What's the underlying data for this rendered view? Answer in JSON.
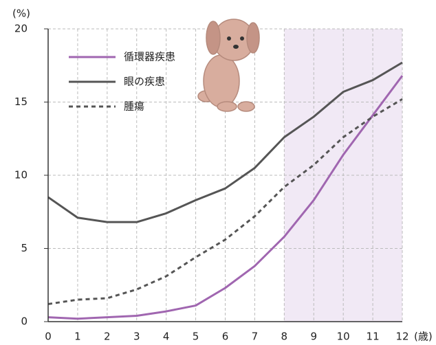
{
  "chart_data": {
    "type": "line",
    "y_unit": "(%)",
    "x_unit": "(歳)",
    "x": [
      0,
      1,
      2,
      3,
      4,
      5,
      6,
      7,
      8,
      9,
      10,
      11,
      12
    ],
    "xlim": [
      0,
      12
    ],
    "xticks": [
      0,
      1,
      2,
      3,
      4,
      5,
      6,
      7,
      8,
      9,
      10,
      11,
      12
    ],
    "ylim": [
      0,
      20
    ],
    "yticks": [
      0,
      5,
      10,
      15,
      20
    ],
    "grid": true,
    "legend": "upper left",
    "shaded_xrange": [
      8,
      12
    ],
    "shade_color": "#f1e9f5",
    "series": [
      {
        "name": "循環器疾患",
        "color": "#a066b0",
        "dash": false,
        "values": [
          0.3,
          0.2,
          0.3,
          0.4,
          0.7,
          1.1,
          2.3,
          3.8,
          5.8,
          8.3,
          11.4,
          14.1,
          16.8
        ]
      },
      {
        "name": "眼の疾患",
        "color": "#555555",
        "dash": false,
        "values": [
          8.5,
          7.1,
          6.8,
          6.8,
          7.4,
          8.3,
          9.1,
          10.5,
          12.6,
          14.0,
          15.7,
          16.5,
          17.7
        ]
      },
      {
        "name": "腫瘍",
        "color": "#555555",
        "dash": true,
        "values": [
          1.2,
          1.5,
          1.6,
          2.2,
          3.1,
          4.4,
          5.6,
          7.2,
          9.2,
          10.7,
          12.6,
          14.0,
          15.2
        ]
      }
    ]
  }
}
